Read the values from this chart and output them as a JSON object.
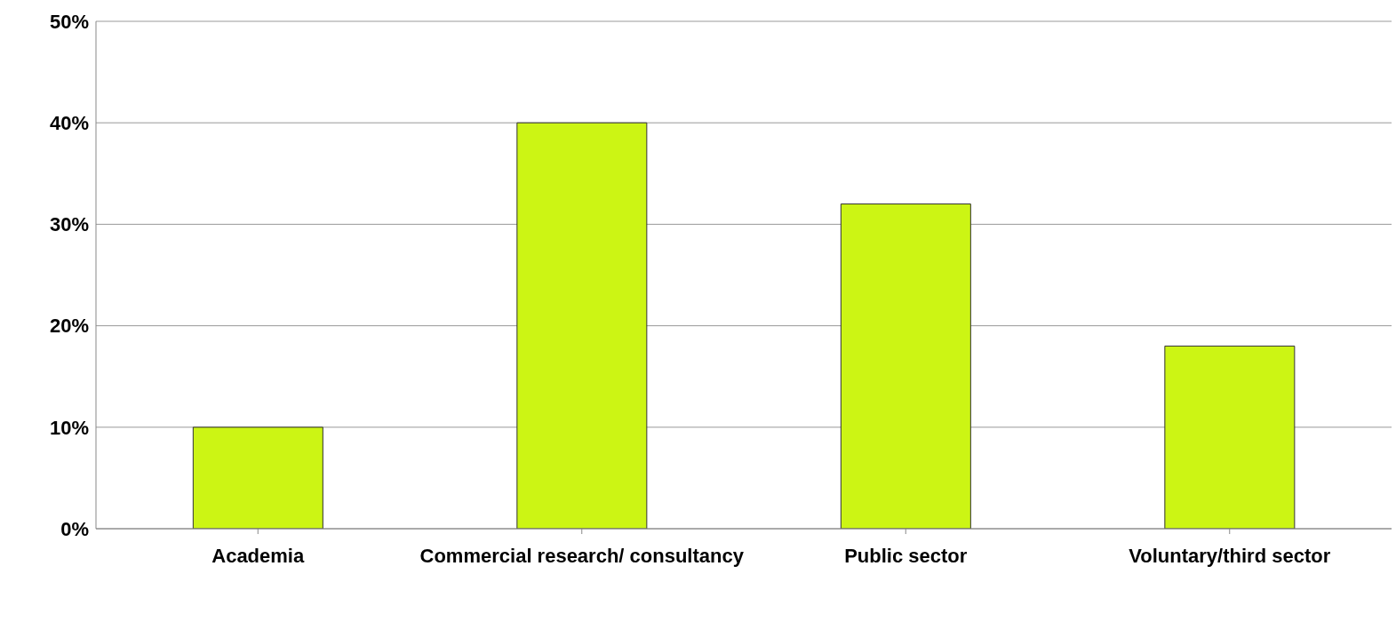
{
  "chart_data": {
    "type": "bar",
    "categories": [
      "Academia",
      "Commercial research/ consultancy",
      "Public sector",
      "Voluntary/third sector"
    ],
    "values": [
      10,
      40,
      32,
      18
    ],
    "color": "#ccf514",
    "ylim": [
      0,
      50
    ],
    "yticks": [
      {
        "value": 0,
        "label": "0%"
      },
      {
        "value": 10,
        "label": "10%"
      },
      {
        "value": 20,
        "label": "20%"
      },
      {
        "value": 30,
        "label": "30%"
      },
      {
        "value": 40,
        "label": "40%"
      },
      {
        "value": 50,
        "label": "50%"
      }
    ],
    "grid": "y",
    "legend": false
  }
}
